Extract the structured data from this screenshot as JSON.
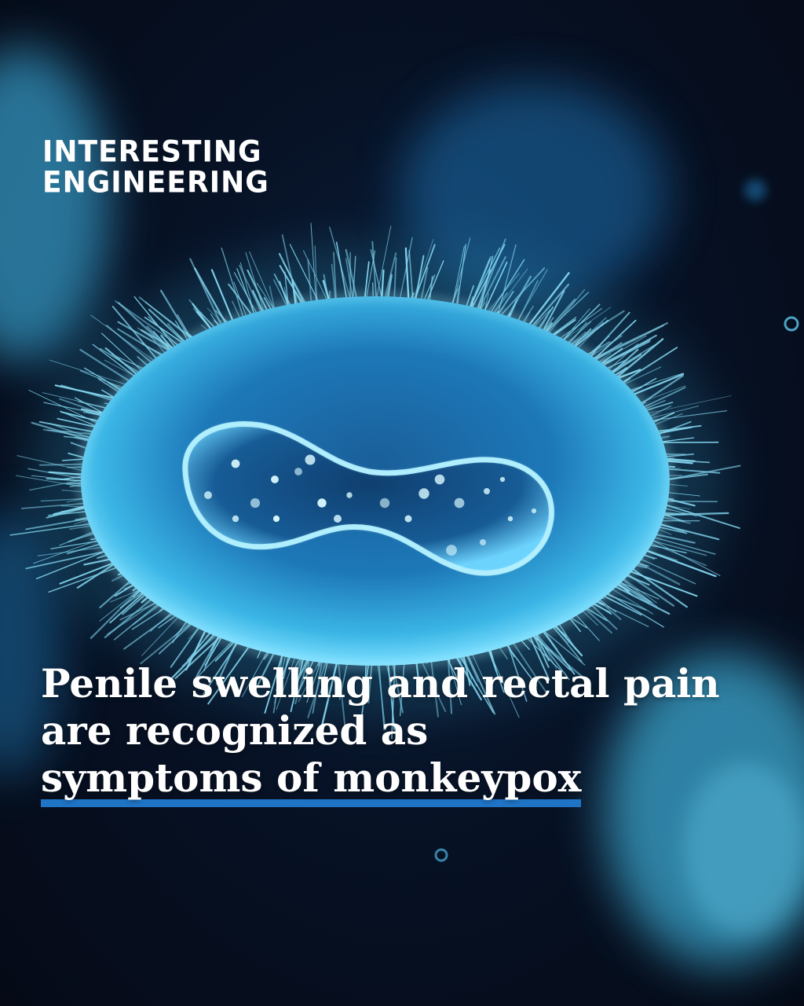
{
  "brand": {
    "line1": "INTERESTING",
    "line2": "ENGINEERING"
  },
  "headline": {
    "line1": "Penile swelling and rectal pain",
    "line2": "are recognized as",
    "line3": "symptoms of monkeypox"
  },
  "colors": {
    "background": "#060b18",
    "virus": "#3ec6f0",
    "underline": "#1f74c6",
    "text": "#ffffff"
  },
  "image": {
    "subject": "monkeypox-virus-particle"
  }
}
